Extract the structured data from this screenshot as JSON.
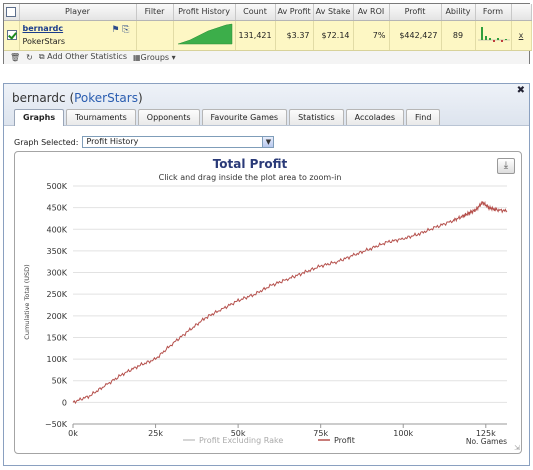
{
  "stats": {
    "columns": [
      "",
      "Player",
      "Filter",
      "Profit History",
      "Count",
      "Av Profit",
      "Av Stake",
      "Av ROI",
      "Profit",
      "Ability",
      "Form",
      ""
    ],
    "row": {
      "player_name": "bernardc",
      "player_site": "PokerStars",
      "filter": "",
      "count": "131,421",
      "av_profit": "$3.37",
      "av_stake": "$72.14",
      "av_roi": "7%",
      "profit": "$442,427",
      "ability": "89",
      "remove": "x"
    },
    "toolbar": {
      "add_stats": "Add Other Statistics",
      "groups": "Groups"
    }
  },
  "panel": {
    "title_player": "bernardc",
    "title_site": "PokerStars",
    "tabs": [
      "Graphs",
      "Tournaments",
      "Opponents",
      "Favourite Games",
      "Statistics",
      "Accolades",
      "Find"
    ],
    "active_tab": "Graphs",
    "graph_selected_label": "Graph Selected:",
    "graph_selected_value": "Profit History"
  },
  "icons": {
    "close": "close-icon",
    "download": "download-icon",
    "trash": "trash-icon",
    "refresh": "refresh-icon",
    "add": "add-icon",
    "groups": "groups-icon"
  },
  "colors": {
    "profit_line": "#b5504c",
    "excluding_rake_line": "#c8c8c8",
    "selected_row": "#fdf7c4",
    "link_blue": "#2a5db0"
  },
  "chart_data": {
    "type": "line",
    "title": "Total Profit",
    "subtitle": "Click and drag inside the plot area to zoom-in",
    "xlabel": "No. Games",
    "ylabel": "Cumulative Total (USD)",
    "xlim": [
      0,
      131421
    ],
    "ylim": [
      -50000,
      500000
    ],
    "x_ticks": [
      0,
      25000,
      50000,
      75000,
      100000,
      125000
    ],
    "x_tick_labels": [
      "0k",
      "25k",
      "50k",
      "75k",
      "100k",
      "125k"
    ],
    "y_ticks": [
      -50000,
      0,
      50000,
      100000,
      150000,
      200000,
      250000,
      300000,
      350000,
      400000,
      450000,
      500000
    ],
    "y_tick_labels": [
      "−50K",
      "0",
      "50K",
      "100K",
      "150K",
      "200K",
      "250K",
      "300K",
      "350K",
      "400K",
      "450K",
      "500K"
    ],
    "grid": "horizontal",
    "legend": "bottom",
    "series": [
      {
        "name": "Profit Excluding Rake",
        "color": "#c8c8c8",
        "x": [],
        "y": []
      },
      {
        "name": "Profit",
        "color": "#b5504c",
        "x": [
          0,
          5000,
          10000,
          15000,
          20000,
          25000,
          30000,
          35000,
          40000,
          45000,
          50000,
          55000,
          60000,
          65000,
          70000,
          75000,
          80000,
          85000,
          90000,
          95000,
          100000,
          105000,
          110000,
          115000,
          118000,
          120000,
          122000,
          124000,
          126000,
          128000,
          131421
        ],
        "y": [
          0,
          15000,
          40000,
          65000,
          85000,
          100000,
          135000,
          165000,
          195000,
          215000,
          235000,
          250000,
          270000,
          285000,
          300000,
          315000,
          325000,
          340000,
          355000,
          370000,
          378000,
          390000,
          405000,
          420000,
          430000,
          438000,
          445000,
          462000,
          450000,
          445000,
          442427
        ]
      }
    ]
  }
}
